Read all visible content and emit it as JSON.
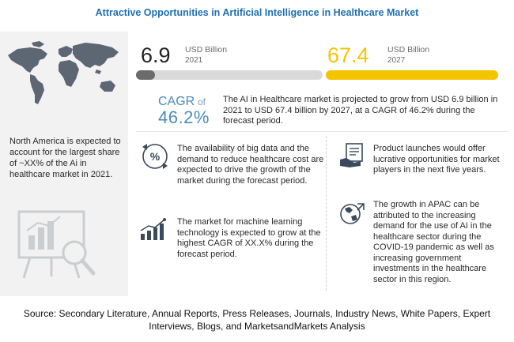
{
  "title": "Attractive Opportunities in Artificial Intelligence in Healthcare Market",
  "market_2021": {
    "value": "6.9",
    "unit": "USD Billion",
    "year": "2021",
    "progress": 0.1
  },
  "market_2027": {
    "value": "67.4",
    "unit": "USD Billion",
    "year": "2027",
    "progress": 1.0
  },
  "cagr": {
    "label": "CAGR",
    "of": "of",
    "value": "46.2%",
    "description": "The AI in Healthcare market is projected to grow from USD 6.9 billion in 2021 to USD 67.4 billion by 2027, at a CAGR of 46.2% during the forecast period."
  },
  "left": {
    "north_america_text": "North America is expected to account for the largest share of ~XX% of the Ai in healthcare market in 2021."
  },
  "points": {
    "p1": "The availability of big data and the demand to reduce healthcare cost are expected to drive the growth of the market during the forecast period.",
    "p2": "The market for machine learning technology is expected to grow at the highest CAGR of XX.X% during the forecast period.",
    "p3": "Product launches would offer lucrative opportunities for market players in the next five years.",
    "p4": "The growth in APAC can be attributed to the increasing demand for the use of AI in the healthcare sector during the COVID-19 pandemic as well as increasing government investments in the healthcare sector in this region."
  },
  "source": "Source: Secondary Literature, Annual Reports, Press Releases, Journals, Industry News, White Papers, Expert Interviews, Blogs, and MarketsandMarkets Analysis",
  "colors": {
    "title_blue": "#1f6fb0",
    "cagr_blue": "#4a8cc0",
    "bar_yellow": "#f5c400",
    "bar_gray": "#6b6b6b",
    "value_yellow": "#f5c400",
    "icon_dark": "#3a4a5a"
  },
  "icons": {
    "map": "world-map-icon",
    "chart": "analytics-magnifier-icon",
    "p1": "percent-arrows-icon",
    "p2": "growth-bars-icon",
    "p3": "product-box-icon",
    "p4": "globe-arrow-icon"
  }
}
